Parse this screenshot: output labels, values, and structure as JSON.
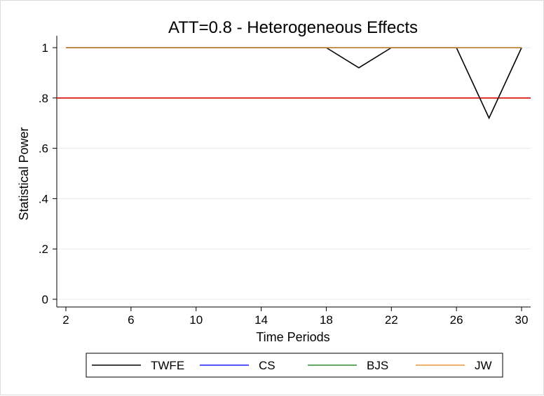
{
  "chart_data": {
    "type": "line",
    "title": "ATT=0.8 - Heterogeneous Effects",
    "xlabel": "Time Periods",
    "ylabel": "Statistical Power",
    "xlim": [
      2,
      30
    ],
    "ylim": [
      0,
      1
    ],
    "xticks": [
      2,
      6,
      10,
      14,
      18,
      22,
      26,
      30
    ],
    "xtick_labels": [
      "2",
      "6",
      "10",
      "14",
      "18",
      "22",
      "26",
      "30"
    ],
    "yticks": [
      0,
      0.2,
      0.4,
      0.6,
      0.8,
      1
    ],
    "ytick_labels": [
      "0",
      ".2",
      ".4",
      ".6",
      ".8",
      "1"
    ],
    "grid": "horizontal",
    "legend_position": "bottom",
    "reference_line": {
      "y": 0.8,
      "color": "#e00000"
    },
    "x": [
      2,
      4,
      6,
      8,
      10,
      12,
      14,
      16,
      18,
      20,
      22,
      24,
      26,
      28,
      30
    ],
    "series": [
      {
        "name": "TWFE",
        "color": "#000000",
        "values": [
          1,
          1,
          1,
          1,
          1,
          1,
          1,
          1,
          1,
          0.92,
          1,
          1,
          1,
          0.72,
          1
        ]
      },
      {
        "name": "CS",
        "color": "#1a1aff",
        "values": [
          1,
          1,
          1,
          1,
          1,
          1,
          1,
          1,
          1,
          1,
          1,
          1,
          1,
          1,
          1
        ]
      },
      {
        "name": "BJS",
        "color": "#2e8b2e",
        "values": [
          1,
          1,
          1,
          1,
          1,
          1,
          1,
          1,
          1,
          1,
          1,
          1,
          1,
          1,
          1
        ]
      },
      {
        "name": "JW",
        "color": "#e8953a",
        "values": [
          1,
          1,
          1,
          1,
          1,
          1,
          1,
          1,
          1,
          1,
          1,
          1,
          1,
          1,
          1
        ]
      }
    ]
  }
}
